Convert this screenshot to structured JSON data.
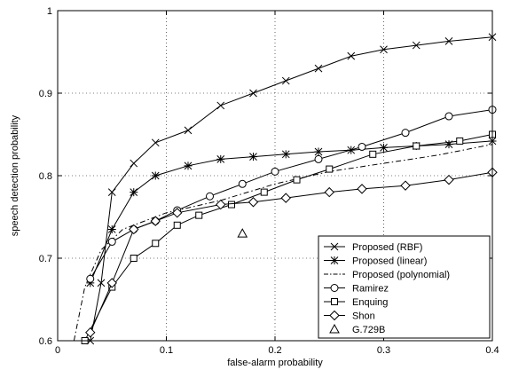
{
  "chart_data": {
    "type": "line",
    "title": "",
    "xlabel": "false-alarm probability",
    "ylabel": "speech detection probability",
    "xlim": [
      0,
      0.4
    ],
    "ylim": [
      0.6,
      1.0
    ],
    "xticks": [
      0,
      0.1,
      0.2,
      0.3,
      0.4
    ],
    "xtick_labels": [
      "0",
      "0.1",
      "0.2",
      "0.3",
      "0.4"
    ],
    "yticks": [
      0.6,
      0.7,
      0.8,
      0.9,
      1.0
    ],
    "ytick_labels": [
      "0.6",
      "0.7",
      "0.8",
      "0.9",
      "1"
    ],
    "grid": true,
    "legend_position": "bottom-right",
    "series": [
      {
        "name": "Proposed (RBF)",
        "marker": "x",
        "line": "solid",
        "x": [
          0.03,
          0.04,
          0.05,
          0.07,
          0.09,
          0.12,
          0.15,
          0.18,
          0.21,
          0.24,
          0.27,
          0.3,
          0.33,
          0.36,
          0.4
        ],
        "y": [
          0.6,
          0.67,
          0.78,
          0.815,
          0.84,
          0.855,
          0.885,
          0.9,
          0.915,
          0.93,
          0.945,
          0.953,
          0.958,
          0.963,
          0.968
        ]
      },
      {
        "name": "Proposed (linear)",
        "marker": "star",
        "line": "solid",
        "x": [
          0.03,
          0.05,
          0.07,
          0.09,
          0.12,
          0.15,
          0.18,
          0.21,
          0.24,
          0.27,
          0.3,
          0.33,
          0.36,
          0.4
        ],
        "y": [
          0.67,
          0.735,
          0.78,
          0.8,
          0.812,
          0.82,
          0.823,
          0.826,
          0.829,
          0.831,
          0.834,
          0.836,
          0.838,
          0.842
        ]
      },
      {
        "name": "Proposed (polynomial)",
        "marker": "none",
        "line": "dash-dot",
        "x": [
          0.015,
          0.025,
          0.04,
          0.06,
          0.08,
          0.1,
          0.15,
          0.2,
          0.25,
          0.3,
          0.35,
          0.4
        ],
        "y": [
          0.6,
          0.665,
          0.71,
          0.735,
          0.745,
          0.755,
          0.77,
          0.79,
          0.805,
          0.815,
          0.825,
          0.838
        ]
      },
      {
        "name": "Ramirez",
        "marker": "circle",
        "line": "solid",
        "x": [
          0.03,
          0.05,
          0.07,
          0.09,
          0.11,
          0.14,
          0.17,
          0.2,
          0.24,
          0.28,
          0.32,
          0.36,
          0.4
        ],
        "y": [
          0.675,
          0.72,
          0.735,
          0.745,
          0.758,
          0.775,
          0.79,
          0.805,
          0.82,
          0.835,
          0.852,
          0.872,
          0.88
        ]
      },
      {
        "name": "Enquing",
        "marker": "square",
        "line": "solid",
        "x": [
          0.025,
          0.05,
          0.07,
          0.09,
          0.11,
          0.13,
          0.16,
          0.19,
          0.22,
          0.25,
          0.29,
          0.33,
          0.37,
          0.4
        ],
        "y": [
          0.6,
          0.665,
          0.7,
          0.718,
          0.74,
          0.752,
          0.765,
          0.78,
          0.795,
          0.808,
          0.826,
          0.836,
          0.842,
          0.85
        ]
      },
      {
        "name": "Shon",
        "marker": "diamond",
        "line": "solid",
        "x": [
          0.03,
          0.05,
          0.07,
          0.09,
          0.11,
          0.15,
          0.18,
          0.21,
          0.25,
          0.28,
          0.32,
          0.36,
          0.4
        ],
        "y": [
          0.61,
          0.67,
          0.735,
          0.745,
          0.755,
          0.765,
          0.768,
          0.773,
          0.78,
          0.784,
          0.788,
          0.795,
          0.804
        ]
      },
      {
        "name": "G.729B",
        "marker": "triangle",
        "line": "none",
        "x": [
          0.17
        ],
        "y": [
          0.73
        ]
      }
    ]
  }
}
